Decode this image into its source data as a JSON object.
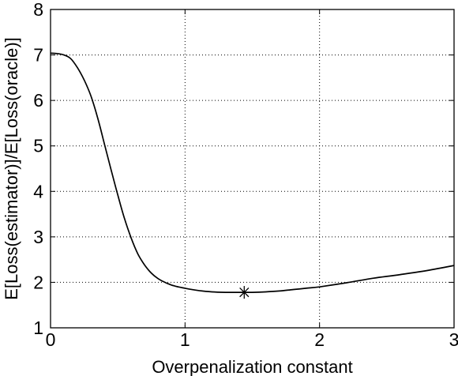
{
  "chart_data": {
    "type": "line",
    "title": "",
    "xlabel": "Overpenalization constant",
    "ylabel": "E[Loss(estimator)]/E[Loss(oracle)]",
    "xlim": [
      0,
      3
    ],
    "ylim": [
      1,
      8
    ],
    "x_ticks": [
      0,
      1,
      2,
      3
    ],
    "x_tick_labels": [
      "0",
      "1",
      "2",
      "3"
    ],
    "y_ticks": [
      1,
      2,
      3,
      4,
      5,
      6,
      7,
      8
    ],
    "y_tick_labels": [
      "1",
      "2",
      "3",
      "4",
      "5",
      "6",
      "7",
      "8"
    ],
    "grid": true,
    "grid_style": "dotted",
    "series": [
      {
        "color": "#000000",
        "x": [
          0.0,
          0.05,
          0.1,
          0.15,
          0.2,
          0.25,
          0.3,
          0.35,
          0.4,
          0.45,
          0.5,
          0.55,
          0.6,
          0.65,
          0.7,
          0.75,
          0.8,
          0.85,
          0.9,
          0.95,
          1.0,
          1.1,
          1.2,
          1.3,
          1.4,
          1.5,
          1.6,
          1.7,
          1.8,
          1.9,
          2.0,
          2.2,
          2.4,
          2.6,
          2.8,
          3.0
        ],
        "y": [
          7.04,
          7.03,
          7.0,
          6.92,
          6.72,
          6.45,
          6.1,
          5.62,
          5.05,
          4.48,
          3.92,
          3.4,
          2.97,
          2.62,
          2.38,
          2.2,
          2.08,
          2.0,
          1.94,
          1.9,
          1.87,
          1.82,
          1.79,
          1.78,
          1.78,
          1.78,
          1.79,
          1.81,
          1.84,
          1.87,
          1.9,
          1.99,
          2.09,
          2.17,
          2.26,
          2.37
        ]
      }
    ],
    "marker": {
      "x": 1.44,
      "y": 1.78,
      "symbol": "asterisk"
    }
  }
}
